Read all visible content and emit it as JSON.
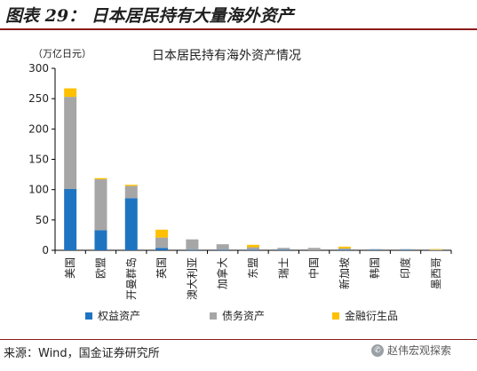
{
  "figure": {
    "title": "图表 29：  日本居民持有大量海外资产",
    "source": "来源：Wind，国金证券研究所",
    "watermark": "赵伟宏观探索",
    "watermark_icon": "wechat-icon"
  },
  "chart_data": {
    "type": "bar",
    "stacked": true,
    "title": "日本居民持有海外资产情况",
    "ylabel": "（万亿日元）",
    "ylim": [
      0,
      300
    ],
    "yticks": [
      0,
      50,
      100,
      150,
      200,
      250,
      300
    ],
    "grid": false,
    "legend_position": "bottom",
    "categories": [
      "美国",
      "欧盟",
      "开曼群岛",
      "英国",
      "澳大利亚",
      "加拿大",
      "东盟",
      "瑞士",
      "中国",
      "新加坡",
      "韩国",
      "印度",
      "墨西哥"
    ],
    "series": [
      {
        "name": "权益资产",
        "color": "#1f74c1",
        "values": [
          101,
          33,
          86,
          4,
          1,
          1,
          1,
          1,
          0,
          1,
          1,
          1,
          0
        ]
      },
      {
        "name": "债务资产",
        "color": "#a6a6a6",
        "values": [
          152,
          84,
          20,
          17,
          17,
          9,
          4,
          3,
          4,
          2,
          1,
          1,
          1
        ]
      },
      {
        "name": "金融衍生品",
        "color": "#ffc000",
        "values": [
          14,
          2,
          2,
          13,
          0,
          0,
          4,
          0,
          0,
          3,
          0,
          0,
          1
        ]
      }
    ]
  }
}
